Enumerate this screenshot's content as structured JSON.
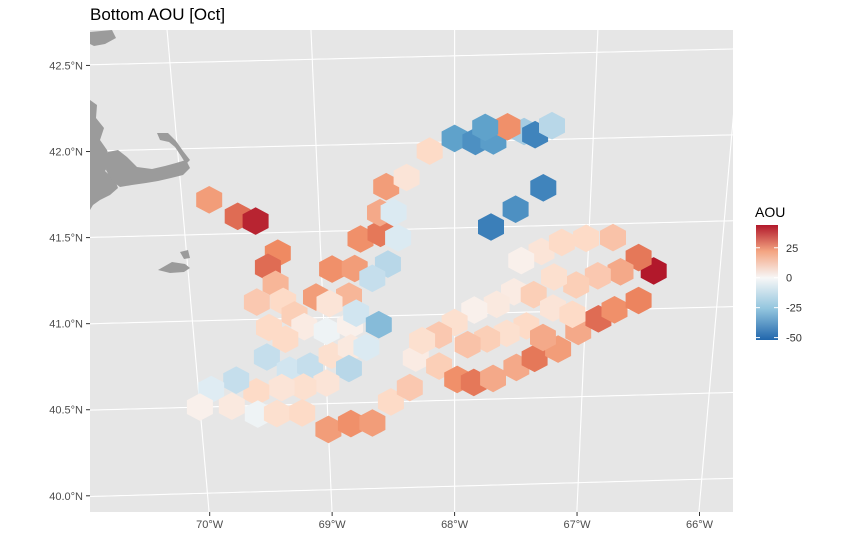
{
  "chart_data": {
    "type": "heatmap",
    "title": "Bottom AOU [Oct]",
    "x_ticks": [
      "70°W",
      "69°W",
      "68°W",
      "67°W",
      "66°W"
    ],
    "y_ticks": [
      "42.5°N",
      "42.0°N",
      "41.5°N",
      "41.0°N",
      "40.5°N",
      "40.0°N"
    ],
    "xlim": [
      -70.75,
      -65.9
    ],
    "ylim": [
      39.85,
      42.65
    ],
    "legend": {
      "title": "AOU",
      "placement": "right",
      "ticks": [
        "25",
        "0",
        "-25",
        "-50"
      ],
      "tick_values": [
        25,
        0,
        -25,
        -50
      ],
      "range": [
        -52,
        44
      ]
    },
    "colors": {
      "panel": "#e6e6e6",
      "grid": "#ffffff",
      "land": "#9b9b9b",
      "low": "#2166ac",
      "mid": "#f7f7f7",
      "high": "#b2182b"
    },
    "stations": [
      [
        -69.8,
        41.7,
        22
      ],
      [
        -69.6,
        41.6,
        30
      ],
      [
        -69.47,
        41.57,
        42
      ],
      [
        -69.32,
        41.38,
        25
      ],
      [
        -69.4,
        41.3,
        30
      ],
      [
        -69.35,
        41.2,
        18
      ],
      [
        -69.5,
        41.1,
        15
      ],
      [
        -69.3,
        41.1,
        12
      ],
      [
        -69.22,
        41.02,
        14
      ],
      [
        -69.05,
        41.12,
        22
      ],
      [
        -68.92,
        41.28,
        24
      ],
      [
        -68.75,
        41.28,
        22
      ],
      [
        -68.7,
        41.45,
        24
      ],
      [
        -68.55,
        41.48,
        28
      ],
      [
        -68.55,
        41.6,
        20
      ],
      [
        -68.45,
        41.6,
        -6
      ],
      [
        -68.42,
        41.45,
        -6
      ],
      [
        -68.5,
        41.3,
        -12
      ],
      [
        -68.62,
        41.22,
        -10
      ],
      [
        -68.8,
        41.12,
        18
      ],
      [
        -68.95,
        41.08,
        8
      ],
      [
        -69.15,
        40.95,
        5
      ],
      [
        -69.3,
        40.88,
        12
      ],
      [
        -69.42,
        40.95,
        12
      ],
      [
        -69.45,
        40.78,
        -10
      ],
      [
        -69.28,
        40.7,
        -8
      ],
      [
        -69.12,
        40.72,
        -10
      ],
      [
        -68.95,
        40.78,
        10
      ],
      [
        -68.98,
        40.92,
        -2
      ],
      [
        -68.8,
        40.95,
        3
      ],
      [
        -68.8,
        40.82,
        6
      ],
      [
        -68.68,
        40.82,
        -6
      ],
      [
        -68.82,
        40.7,
        -12
      ],
      [
        -69.0,
        40.62,
        8
      ],
      [
        -69.18,
        40.6,
        10
      ],
      [
        -69.35,
        40.6,
        8
      ],
      [
        -69.55,
        40.58,
        12
      ],
      [
        -69.7,
        40.65,
        -10
      ],
      [
        -69.9,
        40.6,
        -5
      ],
      [
        -70.0,
        40.5,
        3
      ],
      [
        -69.75,
        40.5,
        6
      ],
      [
        -69.55,
        40.45,
        -2
      ],
      [
        -69.4,
        40.45,
        10
      ],
      [
        -69.2,
        40.45,
        12
      ],
      [
        -69.0,
        40.35,
        22
      ],
      [
        -68.82,
        40.38,
        24
      ],
      [
        -68.65,
        40.38,
        22
      ],
      [
        -68.5,
        40.5,
        12
      ],
      [
        -68.35,
        40.58,
        15
      ],
      [
        -68.3,
        40.75,
        5
      ],
      [
        -68.12,
        40.7,
        14
      ],
      [
        -67.98,
        40.62,
        24
      ],
      [
        -67.85,
        40.6,
        28
      ],
      [
        -67.7,
        40.62,
        20
      ],
      [
        -67.52,
        40.68,
        20
      ],
      [
        -67.38,
        40.73,
        28
      ],
      [
        -67.2,
        40.78,
        22
      ],
      [
        -67.05,
        40.88,
        20
      ],
      [
        -66.9,
        40.95,
        30
      ],
      [
        -66.78,
        41.0,
        24
      ],
      [
        -66.6,
        41.05,
        26
      ],
      [
        -66.5,
        41.22,
        44
      ],
      [
        -66.62,
        41.3,
        28
      ],
      [
        -66.75,
        41.22,
        20
      ],
      [
        -66.92,
        41.2,
        15
      ],
      [
        -67.08,
        41.15,
        14
      ],
      [
        -67.25,
        41.2,
        10
      ],
      [
        -67.35,
        41.35,
        8
      ],
      [
        -67.2,
        41.4,
        12
      ],
      [
        -67.02,
        41.42,
        12
      ],
      [
        -66.82,
        41.42,
        16
      ],
      [
        -67.5,
        41.3,
        3
      ],
      [
        -67.55,
        41.12,
        5
      ],
      [
        -67.68,
        41.05,
        6
      ],
      [
        -67.85,
        41.02,
        3
      ],
      [
        -68.0,
        40.95,
        10
      ],
      [
        -68.12,
        40.88,
        15
      ],
      [
        -68.25,
        40.85,
        10
      ],
      [
        -67.4,
        41.1,
        14
      ],
      [
        -67.25,
        41.02,
        8
      ],
      [
        -67.1,
        40.98,
        12
      ],
      [
        -67.45,
        40.92,
        12
      ],
      [
        -67.6,
        40.88,
        10
      ],
      [
        -67.75,
        40.85,
        14
      ],
      [
        -67.9,
        40.82,
        16
      ],
      [
        -67.32,
        40.85,
        20
      ],
      [
        -68.18,
        41.95,
        12
      ],
      [
        -68.5,
        41.75,
        22
      ],
      [
        -68.35,
        41.8,
        8
      ],
      [
        -68.0,
        42.02,
        -28
      ],
      [
        -67.85,
        42.0,
        -35
      ],
      [
        -67.72,
        42.0,
        -30
      ],
      [
        -67.5,
        42.05,
        -15
      ],
      [
        -67.42,
        42.03,
        -40
      ],
      [
        -67.62,
        42.08,
        24
      ],
      [
        -67.78,
        42.08,
        -28
      ],
      [
        -67.3,
        42.08,
        -12
      ],
      [
        -67.73,
        41.5,
        -42
      ],
      [
        -67.55,
        41.6,
        -35
      ],
      [
        -67.35,
        41.72,
        -40
      ],
      [
        -68.75,
        41.02,
        -8
      ],
      [
        -68.58,
        40.95,
        -20
      ]
    ]
  }
}
